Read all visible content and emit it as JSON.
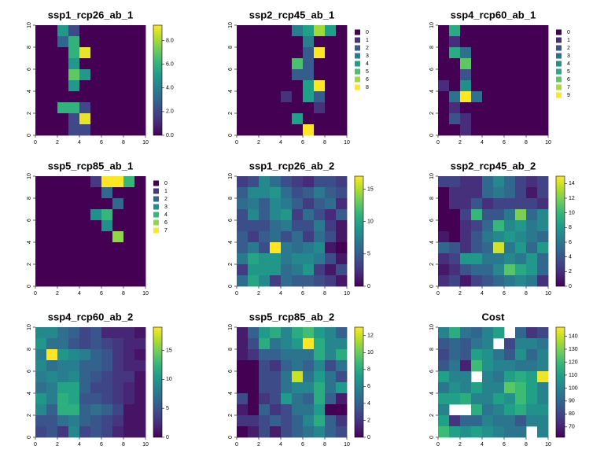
{
  "chart_data": [
    {
      "type": "heatmap",
      "title": "ssp1_rcp26_ab_1",
      "colormap": "viridis",
      "xlim": [
        0,
        10
      ],
      "ylim": [
        0,
        10
      ],
      "xticks": [
        0,
        2,
        4,
        6,
        8,
        10
      ],
      "yticks": [
        0,
        2,
        4,
        6,
        8,
        10
      ],
      "grid": [
        [
          0,
          0,
          5,
          2,
          0,
          0,
          0,
          0,
          0,
          0
        ],
        [
          0,
          0,
          3,
          6,
          0,
          0,
          0,
          0,
          0,
          0
        ],
        [
          0,
          0,
          0,
          6,
          9,
          0,
          0,
          0,
          0,
          0
        ],
        [
          0,
          0,
          0,
          5,
          0,
          0,
          0,
          0,
          0,
          0
        ],
        [
          0,
          0,
          0,
          7,
          5,
          0,
          0,
          0,
          0,
          0
        ],
        [
          0,
          0,
          0,
          5,
          0,
          0,
          0,
          0,
          0,
          0
        ],
        [
          0,
          0,
          0,
          0,
          0,
          0,
          0,
          0,
          0,
          0
        ],
        [
          0,
          0,
          6,
          6,
          2,
          0,
          0,
          0,
          0,
          0
        ],
        [
          0,
          0,
          0,
          2,
          9,
          0,
          0,
          0,
          0,
          0
        ],
        [
          0,
          0,
          0,
          2,
          2,
          0,
          0,
          0,
          0,
          0
        ]
      ],
      "colorbar": {
        "lim": [
          0,
          9.3
        ],
        "ticks": [
          {
            "value": 0,
            "label": "0.0"
          },
          {
            "value": 2,
            "label": "2.0"
          },
          {
            "value": 4,
            "label": "4.0"
          },
          {
            "value": 6,
            "label": "6.0"
          },
          {
            "value": 8,
            "label": "8.0"
          }
        ]
      }
    },
    {
      "type": "heatmap",
      "title": "ssp2_rcp45_ab_1",
      "xlim": [
        0,
        10
      ],
      "ylim": [
        0,
        10
      ],
      "xticks": [
        0,
        2,
        4,
        6,
        8,
        10
      ],
      "yticks": [
        0,
        2,
        4,
        6,
        8,
        10
      ],
      "grid": [
        [
          0,
          0,
          0,
          0,
          0,
          3,
          4,
          6,
          4,
          0
        ],
        [
          0,
          0,
          0,
          0,
          0,
          0,
          3,
          0,
          0,
          0
        ],
        [
          0,
          0,
          0,
          0,
          0,
          0,
          2,
          8,
          0,
          0
        ],
        [
          0,
          0,
          0,
          0,
          0,
          5,
          2,
          0,
          0,
          0
        ],
        [
          0,
          0,
          0,
          0,
          0,
          2,
          2,
          0,
          0,
          0
        ],
        [
          0,
          0,
          0,
          0,
          0,
          0,
          4,
          8,
          0,
          0
        ],
        [
          0,
          0,
          0,
          0,
          1,
          0,
          4,
          2,
          0,
          0
        ],
        [
          0,
          0,
          0,
          0,
          0,
          0,
          0,
          1,
          0,
          0
        ],
        [
          0,
          0,
          0,
          0,
          0,
          4,
          0,
          0,
          0,
          0
        ],
        [
          0,
          0,
          0,
          0,
          0,
          0,
          8,
          0,
          0,
          0
        ]
      ],
      "legend": {
        "levels": [
          0,
          1,
          2,
          3,
          4,
          5,
          6,
          8
        ],
        "colors": [
          "#440154",
          "#46337E",
          "#365C8D",
          "#277F8E",
          "#1FA187",
          "#4AC16D",
          "#9FDA3A",
          "#FDE725"
        ]
      }
    },
    {
      "type": "heatmap",
      "title": "ssp4_rcp60_ab_1",
      "xlim": [
        0,
        10
      ],
      "ylim": [
        0,
        10
      ],
      "xticks": [
        0,
        2,
        4,
        6,
        8,
        10
      ],
      "yticks": [
        0,
        2,
        4,
        6,
        8,
        10
      ],
      "grid": [
        [
          0,
          5,
          0,
          0,
          0,
          0,
          0,
          0,
          0,
          0
        ],
        [
          0,
          1,
          0,
          0,
          0,
          0,
          0,
          0,
          0,
          0
        ],
        [
          0,
          5,
          3,
          0,
          0,
          0,
          0,
          0,
          0,
          0
        ],
        [
          0,
          0,
          6,
          0,
          0,
          0,
          0,
          0,
          0,
          0
        ],
        [
          0,
          0,
          2,
          0,
          0,
          0,
          0,
          0,
          0,
          0
        ],
        [
          1,
          0,
          4,
          0,
          0,
          0,
          0,
          0,
          0,
          0
        ],
        [
          0,
          3,
          9,
          3,
          0,
          0,
          0,
          0,
          0,
          0
        ],
        [
          0,
          1,
          0,
          0,
          0,
          0,
          0,
          0,
          0,
          0
        ],
        [
          0,
          2,
          1,
          0,
          0,
          0,
          0,
          0,
          0,
          0
        ],
        [
          0,
          0,
          1,
          0,
          0,
          0,
          0,
          0,
          0,
          0
        ]
      ],
      "legend": {
        "levels": [
          0,
          1,
          2,
          3,
          4,
          5,
          6,
          7,
          9
        ],
        "colors": [
          "#440154",
          "#472D7B",
          "#3B528B",
          "#2C728E",
          "#21908C",
          "#27AD81",
          "#5DC863",
          "#AADC32",
          "#FDE725"
        ]
      }
    },
    {
      "type": "heatmap",
      "title": "ssp5_rcp85_ab_1",
      "xlim": [
        0,
        10
      ],
      "ylim": [
        0,
        10
      ],
      "xticks": [
        0,
        2,
        4,
        6,
        8,
        10
      ],
      "yticks": [
        0,
        2,
        4,
        6,
        8,
        10
      ],
      "grid": [
        [
          0,
          0,
          0,
          0,
          0,
          1,
          7,
          7,
          4,
          0
        ],
        [
          0,
          0,
          0,
          0,
          0,
          0,
          2,
          0,
          0,
          0
        ],
        [
          0,
          0,
          0,
          0,
          0,
          0,
          0,
          2,
          0,
          0
        ],
        [
          0,
          0,
          0,
          0,
          0,
          3,
          4,
          0,
          0,
          0
        ],
        [
          0,
          0,
          0,
          0,
          0,
          0,
          3,
          0,
          0,
          0
        ],
        [
          0,
          0,
          0,
          0,
          0,
          0,
          0,
          6,
          0,
          0
        ],
        [
          0,
          0,
          0,
          0,
          0,
          0,
          0,
          0,
          0,
          0
        ],
        [
          0,
          0,
          0,
          0,
          0,
          0,
          0,
          0,
          0,
          0
        ],
        [
          0,
          0,
          0,
          0,
          0,
          0,
          0,
          0,
          0,
          0
        ],
        [
          0,
          0,
          0,
          0,
          0,
          0,
          0,
          0,
          0,
          0
        ]
      ],
      "legend": {
        "levels": [
          0,
          1,
          2,
          3,
          4,
          6,
          7
        ],
        "colors": [
          "#440154",
          "#443A83",
          "#31688E",
          "#21908C",
          "#35B779",
          "#8FD744",
          "#FDE725"
        ]
      }
    },
    {
      "type": "heatmap",
      "title": "ssp1_rcp26_ab_2",
      "colormap": "viridis",
      "xlim": [
        0,
        10
      ],
      "ylim": [
        0,
        10
      ],
      "xticks": [
        0,
        2,
        4,
        6,
        8,
        10
      ],
      "yticks": [
        0,
        2,
        4,
        6,
        8,
        10
      ],
      "grid": [
        [
          3,
          4,
          8,
          6,
          4,
          3,
          2,
          4,
          4,
          3
        ],
        [
          5,
          8,
          8,
          9,
          6,
          4,
          5,
          7,
          5,
          4
        ],
        [
          6,
          7,
          5,
          8,
          7,
          5,
          3,
          5,
          6,
          2
        ],
        [
          4,
          8,
          5,
          8,
          9,
          3,
          6,
          4,
          2,
          5
        ],
        [
          4,
          4,
          4,
          6,
          7,
          4,
          4,
          7,
          3,
          1
        ],
        [
          5,
          3,
          5,
          6,
          4,
          6,
          3,
          6,
          4,
          1
        ],
        [
          5,
          7,
          4,
          17,
          7,
          6,
          7,
          8,
          1,
          0
        ],
        [
          7,
          10,
          9,
          9,
          7,
          8,
          8,
          7,
          4,
          1
        ],
        [
          3,
          9,
          9,
          9,
          6,
          7,
          9,
          3,
          1,
          4
        ],
        [
          6,
          10,
          8,
          3,
          6,
          5,
          5,
          4,
          3,
          1
        ]
      ],
      "colorbar": {
        "lim": [
          0,
          17
        ],
        "ticks": [
          0,
          5,
          10,
          15
        ]
      }
    },
    {
      "type": "heatmap",
      "title": "ssp2_rcp45_ab_2",
      "colormap": "viridis",
      "xlim": [
        0,
        10
      ],
      "ylim": [
        0,
        10
      ],
      "xticks": [
        0,
        2,
        4,
        6,
        8,
        10
      ],
      "yticks": [
        0,
        2,
        4,
        6,
        8,
        10
      ],
      "grid": [
        [
          3,
          3,
          2,
          2,
          5,
          7,
          5,
          3,
          2,
          3
        ],
        [
          0,
          2,
          2,
          2,
          5,
          6,
          5,
          3,
          1,
          3
        ],
        [
          0,
          2,
          2,
          4,
          2,
          3,
          3,
          3,
          3,
          2
        ],
        [
          0,
          0,
          3,
          10,
          4,
          4,
          6,
          12,
          5,
          7
        ],
        [
          0,
          0,
          2,
          3,
          5,
          10,
          7,
          8,
          6,
          7
        ],
        [
          1,
          0,
          2,
          4,
          6,
          7,
          8,
          7,
          6,
          5
        ],
        [
          5,
          4,
          2,
          4,
          5,
          14,
          6,
          8,
          5,
          8
        ],
        [
          2,
          3,
          8,
          8,
          6,
          6,
          7,
          6,
          8,
          5
        ],
        [
          1,
          2,
          4,
          5,
          5,
          7,
          11,
          9,
          8,
          5
        ],
        [
          2,
          3,
          1,
          3,
          4,
          5,
          6,
          7,
          6,
          2
        ]
      ],
      "colorbar": {
        "lim": [
          0,
          15
        ],
        "ticks": [
          0,
          2,
          4,
          6,
          8,
          10,
          12,
          14
        ]
      }
    },
    {
      "type": "heatmap",
      "title": "ssp4_rcp60_ab_2",
      "colormap": "viridis",
      "xlim": [
        0,
        10
      ],
      "ylim": [
        0,
        10
      ],
      "xticks": [
        0,
        2,
        4,
        6,
        8,
        10
      ],
      "yticks": [
        0,
        2,
        4,
        6,
        8,
        10
      ],
      "grid": [
        [
          9,
          9,
          7,
          6,
          4,
          5,
          2,
          2,
          2,
          1
        ],
        [
          10,
          7,
          7,
          5,
          4,
          5,
          4,
          3,
          2,
          2
        ],
        [
          8,
          19,
          10,
          9,
          8,
          6,
          5,
          3,
          2,
          1
        ],
        [
          9,
          7,
          8,
          8,
          6,
          6,
          5,
          3,
          2,
          2
        ],
        [
          8,
          9,
          8,
          9,
          6,
          5,
          4,
          3,
          3,
          1
        ],
        [
          7,
          8,
          11,
          11,
          6,
          4,
          4,
          3,
          2,
          1
        ],
        [
          10,
          8,
          12,
          11,
          5,
          5,
          4,
          3,
          2,
          1
        ],
        [
          9,
          6,
          12,
          12,
          6,
          7,
          6,
          4,
          1,
          1
        ],
        [
          5,
          5,
          7,
          8,
          6,
          5,
          4,
          3,
          1,
          1
        ],
        [
          4,
          5,
          3,
          9,
          4,
          5,
          4,
          2,
          1,
          1
        ]
      ],
      "colorbar": {
        "lim": [
          0,
          19
        ],
        "ticks": [
          0,
          5,
          10,
          15
        ]
      }
    },
    {
      "type": "heatmap",
      "title": "ssp5_rcp85_ab_2",
      "colormap": "viridis",
      "xlim": [
        0,
        10
      ],
      "ylim": [
        0,
        10
      ],
      "xticks": [
        0,
        2,
        4,
        6,
        8,
        10
      ],
      "yticks": [
        0,
        2,
        4,
        6,
        8,
        10
      ],
      "grid": [
        [
          1,
          4,
          7,
          8,
          6,
          8,
          9,
          7,
          6,
          4
        ],
        [
          1,
          3,
          8,
          5,
          6,
          7,
          13,
          8,
          6,
          6
        ],
        [
          1,
          2,
          4,
          4,
          5,
          5,
          5,
          8,
          6,
          8
        ],
        [
          0,
          0,
          3,
          2,
          4,
          5,
          4,
          6,
          3,
          5
        ],
        [
          0,
          0,
          3,
          3,
          5,
          12,
          5,
          7,
          5,
          3
        ],
        [
          0,
          0,
          3,
          3,
          5,
          6,
          6,
          8,
          5,
          7
        ],
        [
          3,
          0,
          2,
          3,
          7,
          5,
          4,
          8,
          4,
          1
        ],
        [
          1,
          0,
          4,
          2,
          3,
          5,
          5,
          7,
          0,
          0
        ],
        [
          2,
          2,
          3,
          4,
          3,
          4,
          6,
          8,
          4,
          2
        ],
        [
          0,
          1,
          3,
          1,
          3,
          4,
          5,
          6,
          4,
          3
        ]
      ],
      "colorbar": {
        "lim": [
          0,
          13
        ],
        "ticks": [
          0,
          2,
          4,
          6,
          8,
          10,
          12
        ]
      }
    },
    {
      "type": "heatmap",
      "title": "Cost",
      "colormap": "viridis",
      "xlim": [
        0,
        10
      ],
      "ylim": [
        0,
        10
      ],
      "xticks": [
        0,
        2,
        4,
        6,
        8,
        10
      ],
      "yticks": [
        0,
        2,
        4,
        6,
        8,
        10
      ],
      "grid": [
        [
          100,
          115,
          95,
          90,
          100,
          110,
          null,
          90,
          75,
          80
        ],
        [
          85,
          90,
          85,
          95,
          100,
          null,
          80,
          100,
          100,
          95
        ],
        [
          80,
          90,
          85,
          110,
          105,
          95,
          85,
          105,
          90,
          100
        ],
        [
          85,
          95,
          70,
          120,
          105,
          100,
          100,
          95,
          95,
          100
        ],
        [
          110,
          100,
          100,
          null,
          100,
          95,
          110,
          115,
          110,
          145
        ],
        [
          95,
          105,
          100,
          110,
          100,
          100,
          125,
          120,
          110,
          100
        ],
        [
          110,
          110,
          115,
          100,
          100,
          110,
          105,
          120,
          110,
          100
        ],
        [
          100,
          null,
          null,
          115,
          95,
          100,
          110,
          115,
          105,
          105
        ],
        [
          110,
          75,
          90,
          90,
          100,
          95,
          95,
          85,
          100,
          100
        ],
        [
          120,
          110,
          105,
          110,
          105,
          100,
          95,
          95,
          null,
          100
        ]
      ],
      "colorbar": {
        "lim": [
          62,
          147
        ],
        "ticks": [
          70,
          80,
          90,
          100,
          110,
          120,
          130,
          140
        ]
      }
    }
  ]
}
